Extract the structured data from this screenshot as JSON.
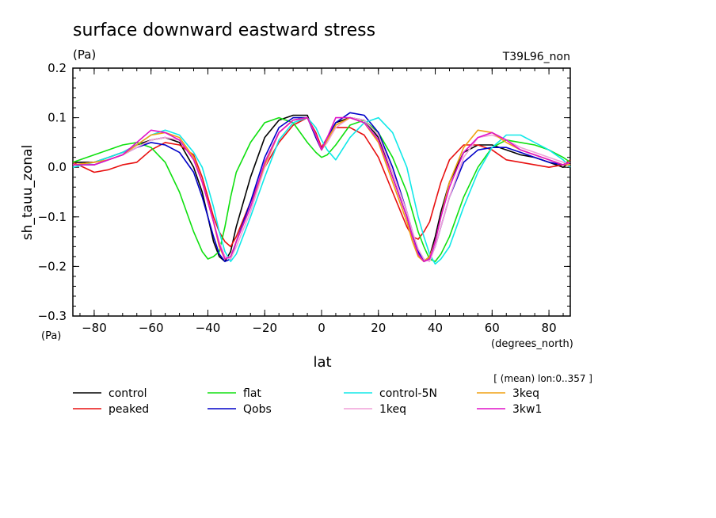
{
  "title": "surface downward eastward stress",
  "units_top": "(Pa)",
  "run_label": "T39L96_non",
  "ylabel": "sh_tauu_zonal",
  "yunits": "(Pa)",
  "xlabel": "lat",
  "xunits": "(degrees_north)",
  "averaging_note": "[ (mean) lon:0..357 ]",
  "chart_data": {
    "type": "line",
    "title": "surface downward eastward stress",
    "xlabel": "lat",
    "ylabel": "sh_tauu_zonal",
    "xlim": [
      -87.5,
      87.5
    ],
    "ylim": [
      -0.3,
      0.2
    ],
    "xticks": [
      -80,
      -60,
      -40,
      -20,
      0,
      20,
      40,
      60,
      80
    ],
    "xtick_labels": [
      "−80",
      "−60",
      "−40",
      "−20",
      "0",
      "20",
      "40",
      "60",
      "80"
    ],
    "yticks": [
      -0.3,
      -0.2,
      -0.1,
      0.0,
      0.1,
      0.2
    ],
    "ytick_labels": [
      "−0.3",
      "−0.2",
      "−0.1",
      "0.0",
      "0.1",
      "0.2"
    ],
    "grid": false,
    "legend_placement": "below",
    "x": [
      -87.5,
      -80,
      -75,
      -70,
      -65,
      -60,
      -55,
      -50,
      -45,
      -42,
      -40,
      -38,
      -36,
      -34,
      -32,
      -30,
      -25,
      -20,
      -15,
      -10,
      -5,
      -2,
      0,
      2,
      5,
      10,
      15,
      20,
      25,
      30,
      32,
      34,
      36,
      38,
      40,
      42,
      45,
      50,
      55,
      60,
      65,
      70,
      75,
      80,
      85,
      87.5
    ],
    "series": [
      {
        "name": "control",
        "color": "#000000",
        "values": [
          0.01,
          0.01,
          0.02,
          0.03,
          0.045,
          0.055,
          0.06,
          0.05,
          0.0,
          -0.05,
          -0.1,
          -0.15,
          -0.18,
          -0.19,
          -0.17,
          -0.12,
          -0.02,
          0.06,
          0.095,
          0.105,
          0.105,
          0.06,
          0.035,
          0.06,
          0.09,
          0.1,
          0.095,
          0.06,
          -0.02,
          -0.1,
          -0.14,
          -0.175,
          -0.19,
          -0.18,
          -0.14,
          -0.09,
          -0.03,
          0.03,
          0.045,
          0.045,
          0.035,
          0.025,
          0.02,
          0.01,
          0.0,
          0.01
        ]
      },
      {
        "name": "peaked",
        "color": "#e81010",
        "values": [
          0.01,
          -0.01,
          -0.005,
          0.005,
          0.01,
          0.035,
          0.05,
          0.045,
          0.025,
          -0.02,
          -0.06,
          -0.1,
          -0.13,
          -0.15,
          -0.16,
          -0.14,
          -0.07,
          0.0,
          0.05,
          0.085,
          0.1,
          0.07,
          0.04,
          0.06,
          0.08,
          0.08,
          0.065,
          0.02,
          -0.05,
          -0.12,
          -0.14,
          -0.145,
          -0.13,
          -0.11,
          -0.07,
          -0.03,
          0.015,
          0.045,
          0.045,
          0.035,
          0.015,
          0.01,
          0.005,
          0.0,
          0.005,
          0.015
        ]
      },
      {
        "name": "flat",
        "color": "#10e010",
        "values": [
          0.01,
          0.025,
          0.035,
          0.045,
          0.05,
          0.04,
          0.01,
          -0.05,
          -0.13,
          -0.17,
          -0.185,
          -0.18,
          -0.17,
          -0.12,
          -0.06,
          -0.01,
          0.05,
          0.09,
          0.1,
          0.09,
          0.05,
          0.03,
          0.02,
          0.025,
          0.045,
          0.085,
          0.095,
          0.07,
          0.02,
          -0.05,
          -0.09,
          -0.13,
          -0.16,
          -0.185,
          -0.19,
          -0.175,
          -0.14,
          -0.06,
          0.0,
          0.04,
          0.055,
          0.05,
          0.045,
          0.035,
          0.02,
          0.01
        ]
      },
      {
        "name": "Qobs",
        "color": "#0000c8",
        "values": [
          0.005,
          0.005,
          0.015,
          0.025,
          0.04,
          0.05,
          0.045,
          0.03,
          -0.01,
          -0.06,
          -0.1,
          -0.14,
          -0.175,
          -0.19,
          -0.185,
          -0.15,
          -0.07,
          0.02,
          0.08,
          0.1,
          0.1,
          0.06,
          0.035,
          0.06,
          0.09,
          0.11,
          0.105,
          0.07,
          0.0,
          -0.09,
          -0.13,
          -0.17,
          -0.19,
          -0.185,
          -0.16,
          -0.12,
          -0.06,
          0.01,
          0.035,
          0.04,
          0.04,
          0.03,
          0.02,
          0.01,
          0.005,
          0.005
        ]
      },
      {
        "name": "control-5N",
        "color": "#10e8e8",
        "values": [
          0.0,
          0.01,
          0.02,
          0.03,
          0.045,
          0.065,
          0.075,
          0.065,
          0.03,
          0.0,
          -0.04,
          -0.08,
          -0.13,
          -0.17,
          -0.19,
          -0.175,
          -0.1,
          -0.02,
          0.055,
          0.09,
          0.1,
          0.08,
          0.055,
          0.035,
          0.015,
          0.06,
          0.09,
          0.1,
          0.07,
          0.0,
          -0.05,
          -0.1,
          -0.14,
          -0.175,
          -0.195,
          -0.185,
          -0.16,
          -0.08,
          -0.01,
          0.04,
          0.065,
          0.065,
          0.05,
          0.035,
          0.015,
          0.0
        ]
      },
      {
        "name": "1keq",
        "color": "#f0a0d8",
        "values": [
          0.005,
          0.01,
          0.015,
          0.025,
          0.04,
          0.055,
          0.06,
          0.055,
          0.02,
          -0.03,
          -0.07,
          -0.11,
          -0.15,
          -0.18,
          -0.185,
          -0.16,
          -0.09,
          0.0,
          0.07,
          0.095,
          0.1,
          0.065,
          0.035,
          0.05,
          0.08,
          0.1,
          0.095,
          0.065,
          -0.01,
          -0.09,
          -0.13,
          -0.165,
          -0.185,
          -0.19,
          -0.16,
          -0.12,
          -0.06,
          0.02,
          0.06,
          0.065,
          0.055,
          0.04,
          0.03,
          0.02,
          0.01,
          0.005
        ]
      },
      {
        "name": "3keq",
        "color": "#f0a010",
        "values": [
          0.005,
          0.01,
          0.015,
          0.025,
          0.045,
          0.065,
          0.07,
          0.06,
          0.02,
          -0.03,
          -0.07,
          -0.11,
          -0.16,
          -0.185,
          -0.18,
          -0.15,
          -0.08,
          0.005,
          0.07,
          0.095,
          0.1,
          0.065,
          0.035,
          0.055,
          0.085,
          0.1,
          0.09,
          0.05,
          -0.03,
          -0.11,
          -0.15,
          -0.18,
          -0.19,
          -0.18,
          -0.15,
          -0.1,
          -0.03,
          0.04,
          0.075,
          0.07,
          0.05,
          0.035,
          0.025,
          0.015,
          0.005,
          0.005
        ]
      },
      {
        "name": "3kw1",
        "color": "#e010c8",
        "values": [
          0.005,
          0.005,
          0.015,
          0.025,
          0.05,
          0.075,
          0.07,
          0.055,
          0.015,
          -0.03,
          -0.07,
          -0.11,
          -0.155,
          -0.185,
          -0.18,
          -0.15,
          -0.08,
          0.01,
          0.07,
          0.095,
          0.1,
          0.065,
          0.035,
          0.06,
          0.1,
          0.1,
          0.09,
          0.055,
          -0.02,
          -0.1,
          -0.14,
          -0.175,
          -0.19,
          -0.185,
          -0.15,
          -0.1,
          -0.04,
          0.03,
          0.06,
          0.07,
          0.055,
          0.035,
          0.025,
          0.015,
          0.005,
          0.01
        ]
      }
    ]
  }
}
